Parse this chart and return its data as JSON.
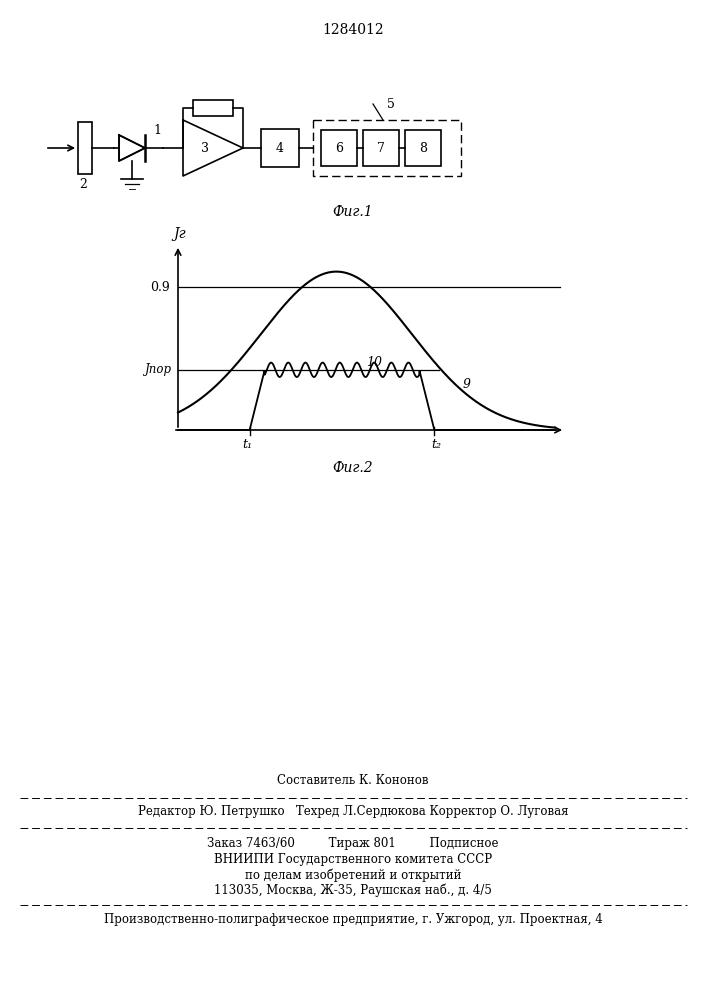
{
  "title": "1284012",
  "fig1_label": "Фиг.1",
  "fig2_label": "Фиг.2",
  "bg_color": "#ffffff",
  "text_color": "#000000",
  "line_color": "#000000",
  "footer_line1": "Составитель К. Кононов",
  "footer_line2": "Редактор Ю. Петрушко   Техред Л.Сердюкова Корректор О. Луговая",
  "footer_line3": "Заказ 7463/60         Тираж 801         Подписное",
  "footer_line4": "ВНИИПИ Государственного комитета СССР",
  "footer_line5": "по делам изобретений и открытий",
  "footer_line6": "113035, Москва, Ж-35, Раушская наб., д. 4/5",
  "footer_line7": "Производственно-полиграфическое предприятие, г. Ужгород, ул. Проектная, 4",
  "graph_ylabel": "Jг",
  "graph_y09": "0.9",
  "graph_ypor": "Jпор",
  "graph_t1": "t₁",
  "graph_t2": "t₂",
  "graph_label9": "9",
  "graph_label10": "10"
}
